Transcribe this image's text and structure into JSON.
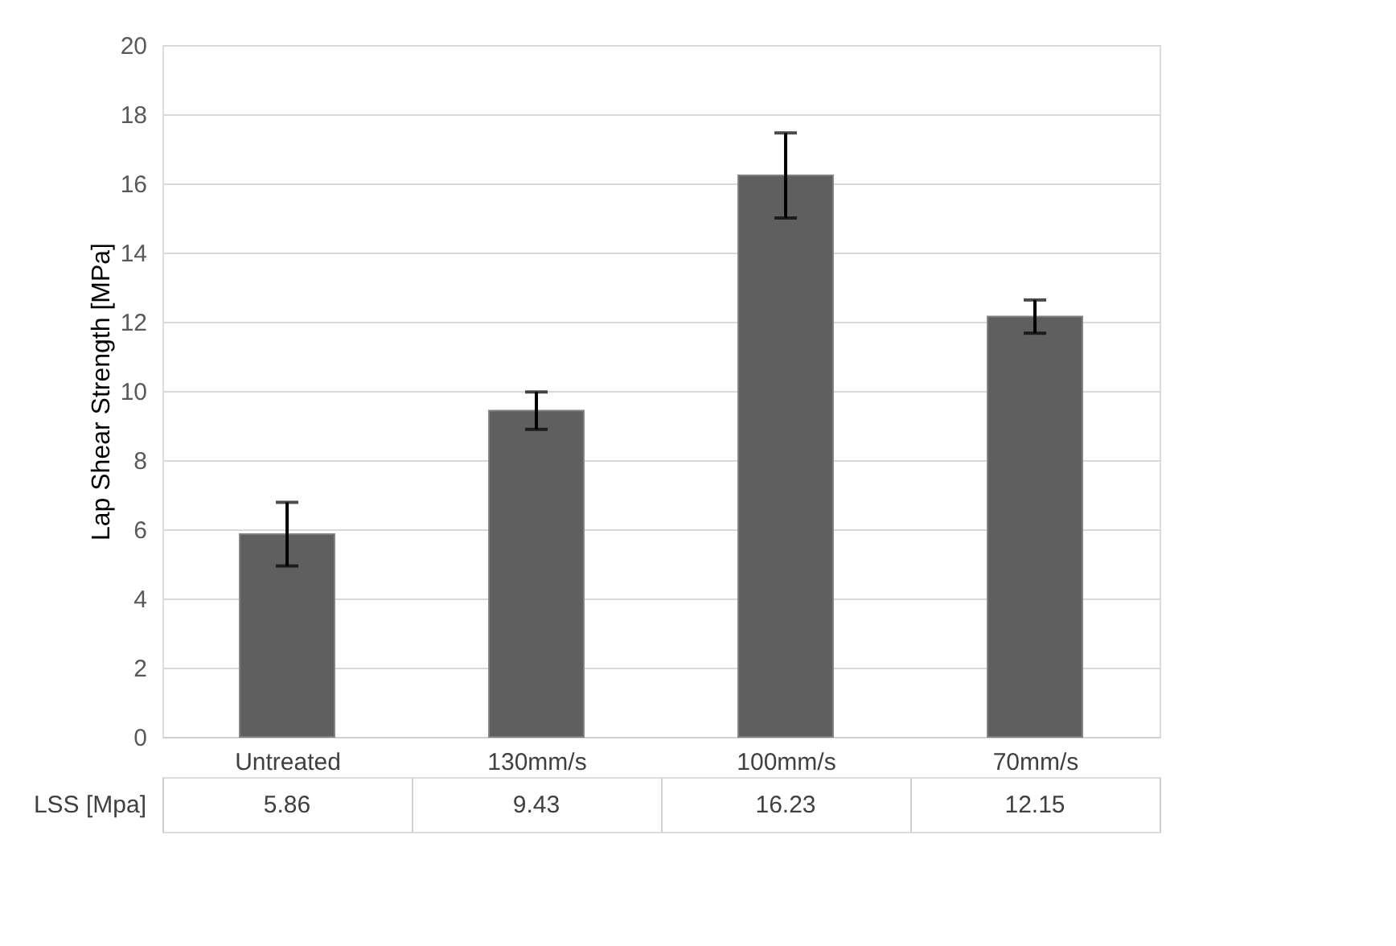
{
  "chart_data": {
    "type": "bar",
    "ylabel": "Lap Shear Strength [MPa]",
    "categories": [
      "Untreated",
      "130mm/s",
      "100mm/s",
      "70mm/s"
    ],
    "series": [
      {
        "name": "LSS [Mpa]",
        "color": "#5f5f5f",
        "values": [
          5.86,
          9.43,
          16.23,
          12.15
        ],
        "errors": [
          0.92,
          0.54,
          1.23,
          0.48
        ]
      }
    ],
    "ylim": [
      0,
      20
    ],
    "yticks": [
      0,
      2,
      4,
      6,
      8,
      10,
      12,
      14,
      16,
      18,
      20
    ],
    "grid": "y",
    "data_labels": true
  }
}
